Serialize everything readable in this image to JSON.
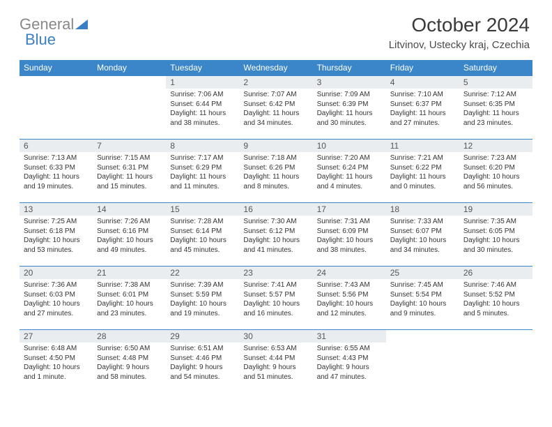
{
  "logo": {
    "text_gray": "General",
    "text_blue": "Blue"
  },
  "header": {
    "title": "October 2024",
    "location": "Litvinov, Ustecky kraj, Czechia"
  },
  "colors": {
    "header_bg": "#3a86c8",
    "daynum_bg": "#e9edf0",
    "rule": "#3a86c8"
  },
  "day_labels": [
    "Sunday",
    "Monday",
    "Tuesday",
    "Wednesday",
    "Thursday",
    "Friday",
    "Saturday"
  ],
  "weeks": [
    [
      null,
      null,
      {
        "n": "1",
        "sunrise": "7:06 AM",
        "sunset": "6:44 PM",
        "daylight": "11 hours and 38 minutes."
      },
      {
        "n": "2",
        "sunrise": "7:07 AM",
        "sunset": "6:42 PM",
        "daylight": "11 hours and 34 minutes."
      },
      {
        "n": "3",
        "sunrise": "7:09 AM",
        "sunset": "6:39 PM",
        "daylight": "11 hours and 30 minutes."
      },
      {
        "n": "4",
        "sunrise": "7:10 AM",
        "sunset": "6:37 PM",
        "daylight": "11 hours and 27 minutes."
      },
      {
        "n": "5",
        "sunrise": "7:12 AM",
        "sunset": "6:35 PM",
        "daylight": "11 hours and 23 minutes."
      }
    ],
    [
      {
        "n": "6",
        "sunrise": "7:13 AM",
        "sunset": "6:33 PM",
        "daylight": "11 hours and 19 minutes."
      },
      {
        "n": "7",
        "sunrise": "7:15 AM",
        "sunset": "6:31 PM",
        "daylight": "11 hours and 15 minutes."
      },
      {
        "n": "8",
        "sunrise": "7:17 AM",
        "sunset": "6:29 PM",
        "daylight": "11 hours and 11 minutes."
      },
      {
        "n": "9",
        "sunrise": "7:18 AM",
        "sunset": "6:26 PM",
        "daylight": "11 hours and 8 minutes."
      },
      {
        "n": "10",
        "sunrise": "7:20 AM",
        "sunset": "6:24 PM",
        "daylight": "11 hours and 4 minutes."
      },
      {
        "n": "11",
        "sunrise": "7:21 AM",
        "sunset": "6:22 PM",
        "daylight": "11 hours and 0 minutes."
      },
      {
        "n": "12",
        "sunrise": "7:23 AM",
        "sunset": "6:20 PM",
        "daylight": "10 hours and 56 minutes."
      }
    ],
    [
      {
        "n": "13",
        "sunrise": "7:25 AM",
        "sunset": "6:18 PM",
        "daylight": "10 hours and 53 minutes."
      },
      {
        "n": "14",
        "sunrise": "7:26 AM",
        "sunset": "6:16 PM",
        "daylight": "10 hours and 49 minutes."
      },
      {
        "n": "15",
        "sunrise": "7:28 AM",
        "sunset": "6:14 PM",
        "daylight": "10 hours and 45 minutes."
      },
      {
        "n": "16",
        "sunrise": "7:30 AM",
        "sunset": "6:12 PM",
        "daylight": "10 hours and 41 minutes."
      },
      {
        "n": "17",
        "sunrise": "7:31 AM",
        "sunset": "6:09 PM",
        "daylight": "10 hours and 38 minutes."
      },
      {
        "n": "18",
        "sunrise": "7:33 AM",
        "sunset": "6:07 PM",
        "daylight": "10 hours and 34 minutes."
      },
      {
        "n": "19",
        "sunrise": "7:35 AM",
        "sunset": "6:05 PM",
        "daylight": "10 hours and 30 minutes."
      }
    ],
    [
      {
        "n": "20",
        "sunrise": "7:36 AM",
        "sunset": "6:03 PM",
        "daylight": "10 hours and 27 minutes."
      },
      {
        "n": "21",
        "sunrise": "7:38 AM",
        "sunset": "6:01 PM",
        "daylight": "10 hours and 23 minutes."
      },
      {
        "n": "22",
        "sunrise": "7:39 AM",
        "sunset": "5:59 PM",
        "daylight": "10 hours and 19 minutes."
      },
      {
        "n": "23",
        "sunrise": "7:41 AM",
        "sunset": "5:57 PM",
        "daylight": "10 hours and 16 minutes."
      },
      {
        "n": "24",
        "sunrise": "7:43 AM",
        "sunset": "5:56 PM",
        "daylight": "10 hours and 12 minutes."
      },
      {
        "n": "25",
        "sunrise": "7:45 AM",
        "sunset": "5:54 PM",
        "daylight": "10 hours and 9 minutes."
      },
      {
        "n": "26",
        "sunrise": "7:46 AM",
        "sunset": "5:52 PM",
        "daylight": "10 hours and 5 minutes."
      }
    ],
    [
      {
        "n": "27",
        "sunrise": "6:48 AM",
        "sunset": "4:50 PM",
        "daylight": "10 hours and 1 minute."
      },
      {
        "n": "28",
        "sunrise": "6:50 AM",
        "sunset": "4:48 PM",
        "daylight": "9 hours and 58 minutes."
      },
      {
        "n": "29",
        "sunrise": "6:51 AM",
        "sunset": "4:46 PM",
        "daylight": "9 hours and 54 minutes."
      },
      {
        "n": "30",
        "sunrise": "6:53 AM",
        "sunset": "4:44 PM",
        "daylight": "9 hours and 51 minutes."
      },
      {
        "n": "31",
        "sunrise": "6:55 AM",
        "sunset": "4:43 PM",
        "daylight": "9 hours and 47 minutes."
      },
      null,
      null
    ]
  ],
  "labels": {
    "sunrise": "Sunrise:",
    "sunset": "Sunset:",
    "daylight": "Daylight:"
  }
}
